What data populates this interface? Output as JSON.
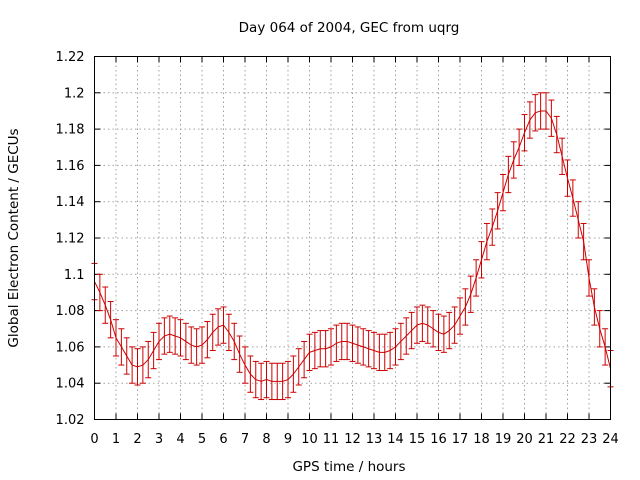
{
  "chart_data": {
    "type": "line",
    "title": "Day 064 of 2004, GEC from uqrg",
    "xlabel": "GPS time / hours",
    "ylabel": "Global Electron Content / GECUs",
    "xlim": [
      0,
      24
    ],
    "ylim": [
      1.02,
      1.22
    ],
    "x_ticks": [
      "0",
      "1",
      "2",
      "3",
      "4",
      "5",
      "6",
      "7",
      "8",
      "9",
      "10",
      "11",
      "12",
      "13",
      "14",
      "15",
      "16",
      "17",
      "18",
      "19",
      "20",
      "21",
      "22",
      "23",
      "24"
    ],
    "y_ticks": [
      "1.02",
      "1.04",
      "1.06",
      "1.08",
      "1.1",
      "1.12",
      "1.14",
      "1.16",
      "1.18",
      "1.2",
      "1.22"
    ],
    "grid": true,
    "error_bars": true,
    "series": [
      {
        "color": "#cc0000",
        "x": [
          0,
          0.25,
          0.5,
          0.75,
          1,
          1.25,
          1.5,
          1.75,
          2,
          2.25,
          2.5,
          2.75,
          3,
          3.25,
          3.5,
          3.75,
          4,
          4.25,
          4.5,
          4.75,
          5,
          5.25,
          5.5,
          5.75,
          6,
          6.25,
          6.5,
          6.75,
          7,
          7.25,
          7.5,
          7.75,
          8,
          8.25,
          8.5,
          8.75,
          9,
          9.25,
          9.5,
          9.75,
          10,
          10.25,
          10.5,
          10.75,
          11,
          11.25,
          11.5,
          11.75,
          12,
          12.25,
          12.5,
          12.75,
          13,
          13.25,
          13.5,
          13.75,
          14,
          14.25,
          14.5,
          14.75,
          15,
          15.25,
          15.5,
          15.75,
          16,
          16.25,
          16.5,
          16.75,
          17,
          17.25,
          17.5,
          17.75,
          18,
          18.25,
          18.5,
          18.75,
          19,
          19.25,
          19.5,
          19.75,
          20,
          20.25,
          20.5,
          20.75,
          21,
          21.25,
          21.5,
          21.75,
          22,
          22.25,
          22.5,
          22.75,
          23,
          23.25,
          23.5,
          23.75,
          24
        ],
        "y": [
          1.096,
          1.09,
          1.083,
          1.075,
          1.065,
          1.06,
          1.055,
          1.05,
          1.049,
          1.05,
          1.053,
          1.058,
          1.063,
          1.066,
          1.067,
          1.066,
          1.065,
          1.063,
          1.061,
          1.06,
          1.061,
          1.064,
          1.068,
          1.071,
          1.072,
          1.068,
          1.063,
          1.056,
          1.05,
          1.045,
          1.042,
          1.041,
          1.042,
          1.041,
          1.041,
          1.041,
          1.042,
          1.045,
          1.049,
          1.053,
          1.057,
          1.058,
          1.059,
          1.059,
          1.06,
          1.062,
          1.063,
          1.063,
          1.062,
          1.061,
          1.06,
          1.059,
          1.058,
          1.057,
          1.057,
          1.058,
          1.06,
          1.063,
          1.066,
          1.069,
          1.072,
          1.073,
          1.072,
          1.07,
          1.068,
          1.067,
          1.069,
          1.072,
          1.077,
          1.082,
          1.089,
          1.098,
          1.108,
          1.118,
          1.126,
          1.135,
          1.145,
          1.155,
          1.163,
          1.17,
          1.178,
          1.185,
          1.189,
          1.19,
          1.19,
          1.186,
          1.177,
          1.165,
          1.153,
          1.142,
          1.13,
          1.118,
          1.098,
          1.082,
          1.07,
          1.06,
          1.048
        ],
        "err": 0.01
      }
    ]
  }
}
